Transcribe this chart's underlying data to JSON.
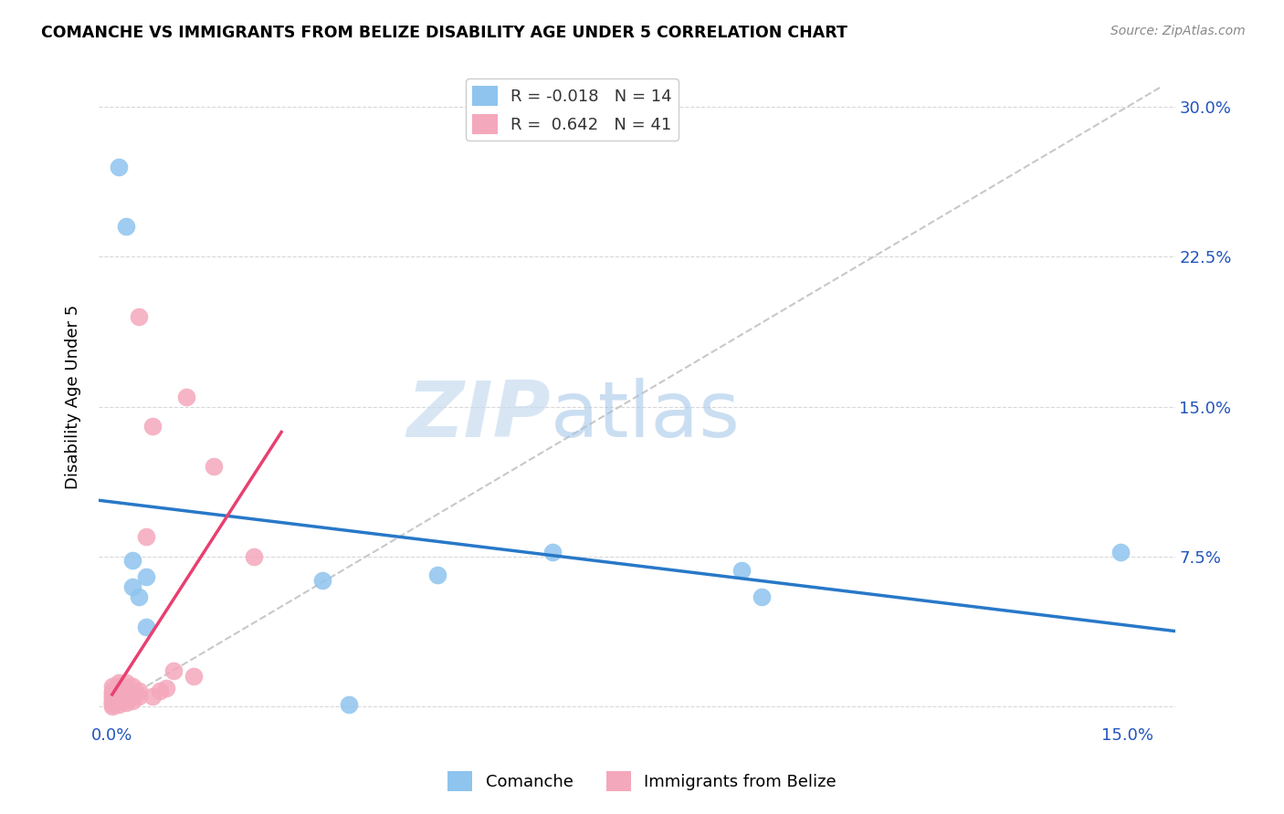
{
  "title": "COMANCHE VS IMMIGRANTS FROM BELIZE DISABILITY AGE UNDER 5 CORRELATION CHART",
  "source": "Source: ZipAtlas.com",
  "ylabel_label": "Disability Age Under 5",
  "x_ticks": [
    0.0,
    0.03,
    0.06,
    0.09,
    0.12,
    0.15
  ],
  "x_tick_labels": [
    "0.0%",
    "",
    "",
    "",
    "",
    "15.0%"
  ],
  "y_ticks": [
    0.0,
    0.075,
    0.15,
    0.225,
    0.3
  ],
  "y_tick_labels": [
    "",
    "7.5%",
    "15.0%",
    "22.5%",
    "30.0%"
  ],
  "xlim": [
    -0.002,
    0.157
  ],
  "ylim": [
    -0.008,
    0.318
  ],
  "watermark_zip": "ZIP",
  "watermark_atlas": "atlas",
  "legend_blue_label": "Comanche",
  "legend_pink_label": "Immigrants from Belize",
  "blue_R": "-0.018",
  "blue_N": "14",
  "pink_R": "0.642",
  "pink_N": "41",
  "blue_color": "#8EC4EE",
  "pink_color": "#F4A8BC",
  "trend_blue_color": "#2878C8",
  "trend_pink_color": "#E84070",
  "diagonal_color": "#C8C8C8",
  "blue_points_x": [
    0.001,
    0.002,
    0.003,
    0.003,
    0.004,
    0.005,
    0.005,
    0.031,
    0.035,
    0.048,
    0.065,
    0.093,
    0.096,
    0.149
  ],
  "blue_points_y": [
    0.27,
    0.24,
    0.073,
    0.06,
    0.055,
    0.065,
    0.04,
    0.063,
    0.001,
    0.066,
    0.077,
    0.068,
    0.055,
    0.077
  ],
  "pink_points_x": [
    0.0,
    0.0,
    0.0,
    0.0,
    0.0,
    0.0,
    0.0,
    0.0,
    0.0,
    0.0,
    0.0,
    0.001,
    0.001,
    0.001,
    0.001,
    0.001,
    0.001,
    0.001,
    0.002,
    0.002,
    0.002,
    0.002,
    0.002,
    0.002,
    0.003,
    0.003,
    0.003,
    0.003,
    0.004,
    0.004,
    0.004,
    0.005,
    0.006,
    0.006,
    0.007,
    0.008,
    0.009,
    0.011,
    0.012,
    0.015,
    0.021
  ],
  "pink_points_y": [
    0.0,
    0.001,
    0.002,
    0.002,
    0.003,
    0.004,
    0.005,
    0.006,
    0.007,
    0.008,
    0.01,
    0.001,
    0.003,
    0.005,
    0.007,
    0.008,
    0.01,
    0.012,
    0.002,
    0.004,
    0.006,
    0.007,
    0.009,
    0.012,
    0.003,
    0.005,
    0.007,
    0.01,
    0.005,
    0.008,
    0.195,
    0.085,
    0.005,
    0.14,
    0.008,
    0.009,
    0.018,
    0.155,
    0.015,
    0.12,
    0.075
  ]
}
